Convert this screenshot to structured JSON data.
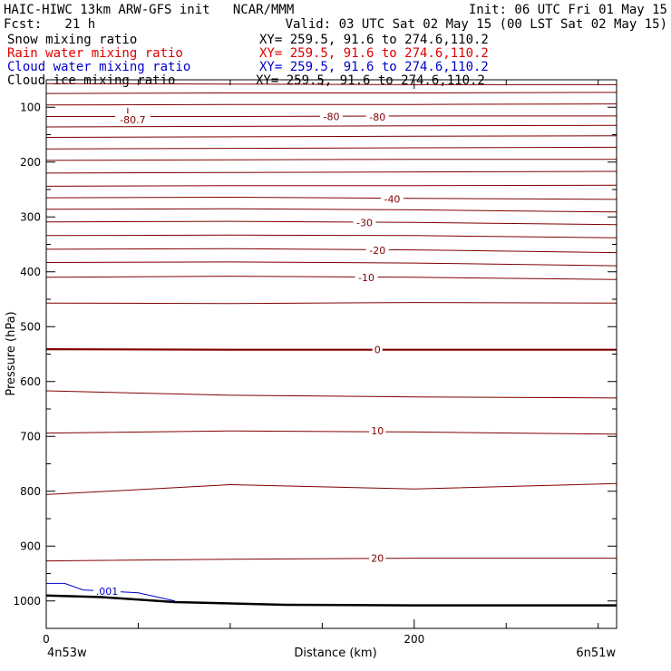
{
  "header": {
    "title_line": "HAIC-HIWC 13km ARW-GFS init   NCAR/MMM",
    "init": "Init: 06 UTC Fri 01 May 15",
    "fcst": "Fcst:   21 h",
    "valid": "Valid: 03 UTC Sat 02 May 15 (00 LST Sat 02 May 15)"
  },
  "fields": [
    {
      "name": "Snow mixing ratio",
      "xy": "XY= 259.5, 91.6 to 274.6,110.2",
      "color": "#000000"
    },
    {
      "name": "Rain water mixing ratio",
      "xy": "XY= 259.5, 91.6 to 274.6,110.2",
      "color": "#e00000"
    },
    {
      "name": "Cloud water mixing ratio",
      "xy": "XY= 259.5, 91.6 to 274.6,110.2",
      "color": "#0000cc"
    },
    {
      "name": "Cloud ice mixing ratio",
      "xy": "XY= 259.5, 91.6 to 274.6,110.2",
      "color": "#000000"
    }
  ],
  "chart_data": {
    "type": "line",
    "xlabel": "Distance (km)",
    "ylabel": "Pressure (hPa)",
    "xlim": [
      0,
      310
    ],
    "ylim": [
      50,
      1050
    ],
    "x_ticks": [
      0,
      200
    ],
    "x_minor_ticks": [
      50,
      100,
      150,
      250,
      300
    ],
    "y_ticks": [
      100,
      200,
      300,
      400,
      500,
      600,
      700,
      800,
      900,
      1000
    ],
    "x_endpoints": {
      "left": "4n53w",
      "right": "6n51w"
    },
    "temperature_contours": {
      "color": "#800000",
      "interval_c": 5,
      "bold_zero": true,
      "levels": [
        {
          "p": [
            57,
            58,
            59,
            59
          ],
          "label": ""
        },
        {
          "p": [
            75,
            74,
            74,
            73
          ],
          "label": ""
        },
        {
          "p": [
            96,
            95,
            95,
            94
          ],
          "label": ""
        },
        {
          "p": [
            117,
            117,
            116,
            116
          ],
          "label": "-80",
          "label_x": 155,
          "label_p": 117
        },
        {
          "p": [
            136,
            135,
            134,
            133
          ],
          "label": ""
        },
        {
          "p": [
            155,
            154,
            153,
            152
          ],
          "label": ""
        },
        {
          "p": [
            176,
            175,
            174,
            173
          ],
          "label": ""
        },
        {
          "p": [
            197,
            196,
            195,
            195
          ],
          "label": ""
        },
        {
          "p": [
            220,
            219,
            218,
            217
          ],
          "label": ""
        },
        {
          "p": [
            244,
            243,
            243,
            242
          ],
          "label": ""
        },
        {
          "p": [
            265,
            264,
            266,
            268
          ],
          "label": "-40",
          "label_x": 188,
          "label_p": 267
        },
        {
          "p": [
            286,
            285,
            287,
            291
          ],
          "label": ""
        },
        {
          "p": [
            309,
            308,
            310,
            314
          ],
          "label": "-30",
          "label_x": 173,
          "label_p": 310
        },
        {
          "p": [
            334,
            333,
            334,
            338
          ],
          "label": ""
        },
        {
          "p": [
            359,
            358,
            360,
            365
          ],
          "label": "-20",
          "label_x": 180,
          "label_p": 361
        },
        {
          "p": [
            383,
            382,
            384,
            389
          ],
          "label": ""
        },
        {
          "p": [
            410,
            408,
            410,
            414
          ],
          "label": "-10",
          "label_x": 174,
          "label_p": 410
        },
        {
          "p": [
            457,
            458,
            456,
            457
          ],
          "label": ""
        },
        {
          "p": [
            541,
            542,
            542,
            542
          ],
          "label": "0",
          "label_x": 180,
          "label_p": 542,
          "bold": true
        },
        {
          "p": [
            617,
            625,
            628,
            630
          ],
          "label": ""
        },
        {
          "p": [
            694,
            690,
            692,
            696
          ],
          "label": "10",
          "label_x": 180,
          "label_p": 690
        },
        {
          "p": [
            806,
            788,
            796,
            786
          ],
          "label": ""
        },
        {
          "p": [
            927,
            924,
            922,
            922
          ],
          "label": "20",
          "label_x": 180,
          "label_p": 922
        }
      ],
      "contour_x": [
        0,
        100,
        200,
        310
      ],
      "annotations": [
        {
          "text": "L",
          "x": 45,
          "p": 108
        },
        {
          "text": "-80.7",
          "x": 47,
          "p": 123
        },
        {
          "text": "-80",
          "x": 180,
          "p": 118
        }
      ]
    },
    "cloud_water_contour": {
      "color": "#0000cc",
      "label": ".001",
      "points": [
        [
          0,
          968
        ],
        [
          10,
          968
        ],
        [
          20,
          980
        ],
        [
          50,
          985
        ],
        [
          70,
          1000
        ]
      ],
      "label_x": 33,
      "label_p": 982
    },
    "terrain": {
      "color": "#000000",
      "points": [
        [
          0,
          990
        ],
        [
          30,
          993
        ],
        [
          70,
          1002
        ],
        [
          130,
          1007
        ],
        [
          200,
          1008
        ],
        [
          310,
          1008
        ]
      ]
    }
  }
}
